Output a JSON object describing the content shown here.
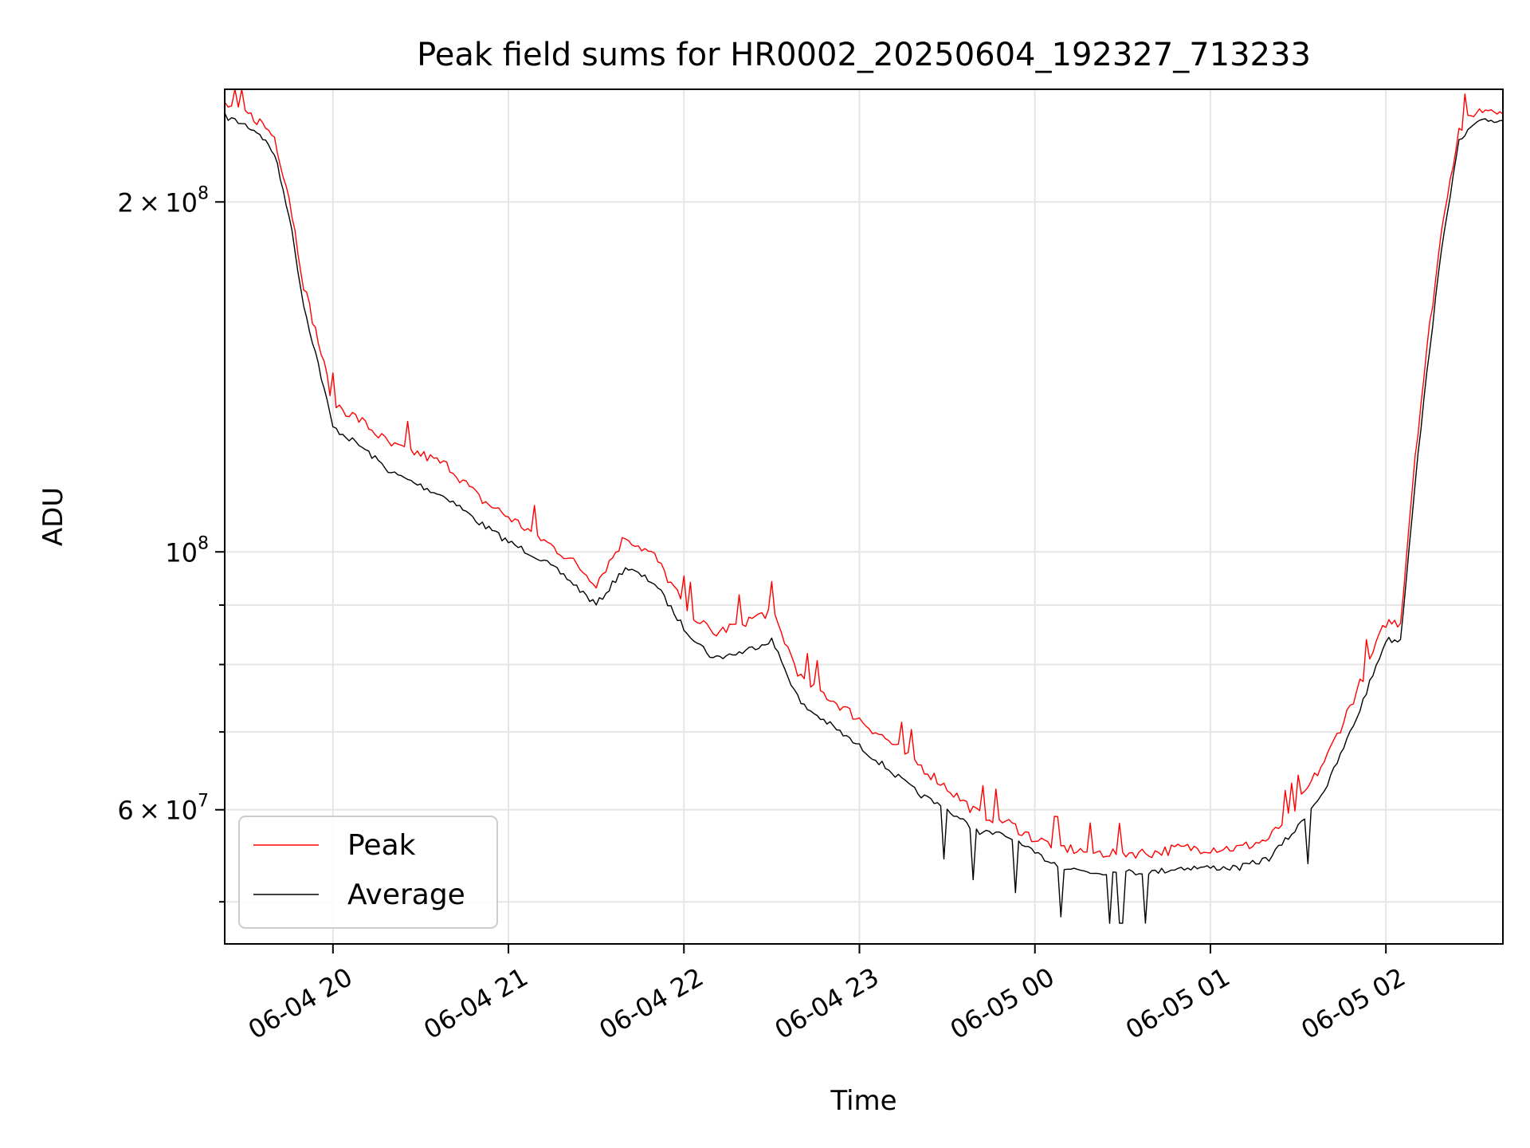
{
  "chart_data": {
    "type": "line",
    "title": "Peak field sums for HR0002_20250604_192327_713233",
    "xlabel": "Time",
    "ylabel": "ADU",
    "yscale": "log",
    "xlim": [
      "2025-06-04 19:23",
      "2025-06-05 02:40"
    ],
    "ylim": [
      46000000,
      250000000
    ],
    "grid": true,
    "legend_position": "lower-left",
    "x_ticks": [
      {
        "value": "2025-06-04 20:00",
        "label": "06-04 20"
      },
      {
        "value": "2025-06-04 21:00",
        "label": "06-04 21"
      },
      {
        "value": "2025-06-04 22:00",
        "label": "06-04 22"
      },
      {
        "value": "2025-06-04 23:00",
        "label": "06-04 23"
      },
      {
        "value": "2025-06-05 00:00",
        "label": "06-05 00"
      },
      {
        "value": "2025-06-05 01:00",
        "label": "06-05 01"
      },
      {
        "value": "2025-06-05 02:00",
        "label": "06-05 02"
      }
    ],
    "y_ticks": [
      {
        "value": 60000000,
        "mantissa": "6",
        "exponent": "7"
      },
      {
        "value": 100000000,
        "mantissa": "",
        "exponent": "8"
      },
      {
        "value": 200000000,
        "mantissa": "2",
        "exponent": "8"
      }
    ],
    "y_minor_ticks": [
      50000000,
      70000000,
      80000000,
      90000000
    ],
    "series": [
      {
        "name": "Peak",
        "color": "#ff0000",
        "x": [
          "2025-06-04 19:23",
          "2025-06-04 19:30",
          "2025-06-04 19:35",
          "2025-06-04 19:40",
          "2025-06-04 19:45",
          "2025-06-04 19:50",
          "2025-06-04 19:55",
          "2025-06-04 20:00",
          "2025-06-04 20:10",
          "2025-06-04 20:20",
          "2025-06-04 20:30",
          "2025-06-04 20:40",
          "2025-06-04 20:50",
          "2025-06-04 21:00",
          "2025-06-04 21:10",
          "2025-06-04 21:20",
          "2025-06-04 21:30",
          "2025-06-04 21:40",
          "2025-06-04 21:50",
          "2025-06-04 22:00",
          "2025-06-04 22:10",
          "2025-06-04 22:20",
          "2025-06-04 22:30",
          "2025-06-04 22:40",
          "2025-06-04 22:50",
          "2025-06-04 23:00",
          "2025-06-04 23:10",
          "2025-06-04 23:20",
          "2025-06-04 23:30",
          "2025-06-04 23:40",
          "2025-06-04 23:50",
          "2025-06-05 00:00",
          "2025-06-05 00:10",
          "2025-06-05 00:20",
          "2025-06-05 00:30",
          "2025-06-05 00:40",
          "2025-06-05 00:50",
          "2025-06-05 01:00",
          "2025-06-05 01:10",
          "2025-06-05 01:20",
          "2025-06-05 01:30",
          "2025-06-05 01:40",
          "2025-06-05 01:50",
          "2025-06-05 02:00",
          "2025-06-05 02:05",
          "2025-06-05 02:10",
          "2025-06-05 02:15",
          "2025-06-05 02:20",
          "2025-06-05 02:25",
          "2025-06-05 02:30",
          "2025-06-05 02:35",
          "2025-06-05 02:40"
        ],
        "values": [
          240000000,
          236000000,
          232000000,
          225000000,
          200000000,
          168000000,
          150000000,
          133000000,
          128000000,
          122000000,
          120000000,
          117000000,
          110000000,
          106000000,
          102000000,
          98000000,
          93000000,
          102000000,
          98000000,
          89000000,
          84000000,
          86000000,
          88000000,
          77000000,
          74000000,
          71000000,
          68000000,
          65000000,
          62000000,
          59000000,
          58000000,
          56000000,
          55000000,
          54500000,
          54500000,
          54500000,
          55000000,
          55000000,
          55000000,
          56000000,
          60000000,
          66000000,
          75000000,
          86000000,
          86000000,
          120000000,
          155000000,
          195000000,
          228000000,
          236000000,
          238000000,
          238000000
        ]
      },
      {
        "name": "Average",
        "color": "#000000",
        "x": [
          "2025-06-04 19:23",
          "2025-06-04 19:30",
          "2025-06-04 19:35",
          "2025-06-04 19:40",
          "2025-06-04 19:45",
          "2025-06-04 19:50",
          "2025-06-04 19:55",
          "2025-06-04 20:00",
          "2025-06-04 20:10",
          "2025-06-04 20:20",
          "2025-06-04 20:30",
          "2025-06-04 20:40",
          "2025-06-04 20:50",
          "2025-06-04 21:00",
          "2025-06-04 21:10",
          "2025-06-04 21:20",
          "2025-06-04 21:30",
          "2025-06-04 21:40",
          "2025-06-04 21:50",
          "2025-06-04 22:00",
          "2025-06-04 22:10",
          "2025-06-04 22:20",
          "2025-06-04 22:30",
          "2025-06-04 22:40",
          "2025-06-04 22:50",
          "2025-06-04 23:00",
          "2025-06-04 23:10",
          "2025-06-04 23:20",
          "2025-06-04 23:30",
          "2025-06-04 23:40",
          "2025-06-04 23:50",
          "2025-06-05 00:00",
          "2025-06-05 00:10",
          "2025-06-05 00:20",
          "2025-06-05 00:30",
          "2025-06-05 00:40",
          "2025-06-05 00:50",
          "2025-06-05 01:00",
          "2025-06-05 01:10",
          "2025-06-05 01:20",
          "2025-06-05 01:30",
          "2025-06-05 01:40",
          "2025-06-05 01:50",
          "2025-06-05 02:00",
          "2025-06-05 02:05",
          "2025-06-05 02:10",
          "2025-06-05 02:15",
          "2025-06-05 02:20",
          "2025-06-05 02:25",
          "2025-06-05 02:30",
          "2025-06-05 02:35",
          "2025-06-05 02:40"
        ],
        "values": [
          237000000,
          233000000,
          229000000,
          220000000,
          195000000,
          163000000,
          145000000,
          128000000,
          123000000,
          117000000,
          114000000,
          111000000,
          106000000,
          102000000,
          99000000,
          95000000,
          90000000,
          97000000,
          94000000,
          86000000,
          81000000,
          82000000,
          84000000,
          74000000,
          71000000,
          68000000,
          65000000,
          62000000,
          60000000,
          57500000,
          57000000,
          55000000,
          53500000,
          53000000,
          53000000,
          53000000,
          53500000,
          53500000,
          53500000,
          54500000,
          58000000,
          63000000,
          72000000,
          84000000,
          84000000,
          115000000,
          150000000,
          190000000,
          225000000,
          233000000,
          235000000,
          235000000
        ]
      }
    ]
  }
}
